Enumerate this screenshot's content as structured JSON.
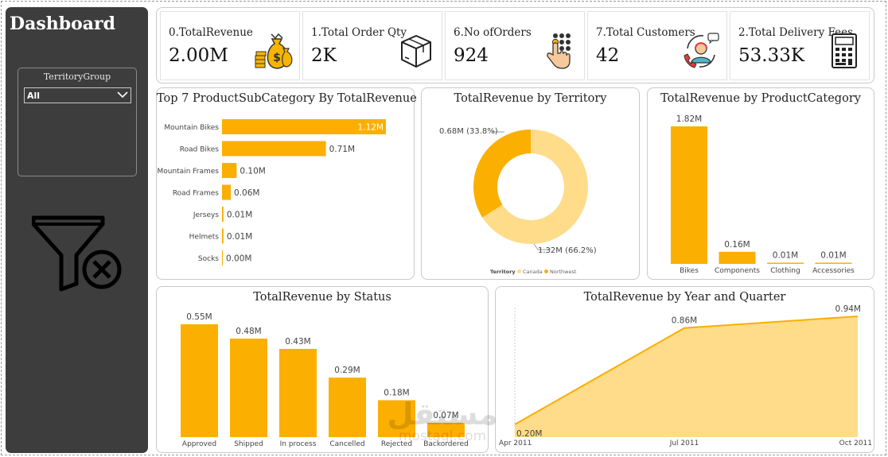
{
  "sidebar": {
    "title": "Dashboard",
    "slicer": {
      "title": "TerritoryGroup",
      "selected": "All"
    }
  },
  "kpis": [
    {
      "label": "0.TotalRevenue",
      "value": "2.00M",
      "icon": "money-bags-icon"
    },
    {
      "label": "1.Total Order Qty",
      "value": "2K",
      "icon": "package-box-icon"
    },
    {
      "label": "6.No ofOrders",
      "value": "924",
      "icon": "touch-keypad-icon"
    },
    {
      "label": "7.Total Customers",
      "value": "42",
      "icon": "customer-support-icon"
    },
    {
      "label": "2.Total Delivery Fees",
      "value": "53.33K",
      "icon": "calculator-icon"
    }
  ],
  "colors": {
    "primary": "#FBAF00",
    "secondary": "#FEDC8A",
    "sidebar": "#3D3D3D"
  },
  "watermark": "mostaql.com",
  "chart_data": [
    {
      "id": "subcategory",
      "type": "bar",
      "orientation": "horizontal",
      "title": "Top 7 ProductSubCategory By TotalRevenue",
      "categories": [
        "Mountain Bikes",
        "Road Bikes",
        "Mountain Frames",
        "Road Frames",
        "Jerseys",
        "Helmets",
        "Socks"
      ],
      "values": [
        1.12,
        0.71,
        0.1,
        0.06,
        0.01,
        0.01,
        0.0
      ],
      "labels": [
        "1.12M",
        "0.71M",
        "0.10M",
        "0.06M",
        "0.01M",
        "0.01M",
        "0.00M"
      ],
      "xlim": [
        0,
        1.12
      ]
    },
    {
      "id": "territory",
      "type": "pie",
      "donut": true,
      "title": "TotalRevenue by Territory",
      "legend_title": "Territory",
      "legend_position": "bottom",
      "slices": [
        {
          "name": "Canada",
          "value": 1.32,
          "label": "1.32M (66.2%)",
          "color": "#FEDC8A"
        },
        {
          "name": "Northwest",
          "value": 0.68,
          "label": "0.68M (33.8%)",
          "color": "#FBAF00"
        }
      ]
    },
    {
      "id": "category",
      "type": "bar",
      "title": "TotalRevenue by ProductCategory",
      "categories": [
        "Bikes",
        "Components",
        "Clothing",
        "Accessories"
      ],
      "values": [
        1.82,
        0.16,
        0.01,
        0.01
      ],
      "labels": [
        "1.82M",
        "0.16M",
        "0.01M",
        "0.01M"
      ],
      "ylim": [
        0,
        1.82
      ]
    },
    {
      "id": "status",
      "type": "bar",
      "title": "TotalRevenue by Status",
      "categories": [
        "Approved",
        "Shipped",
        "In process",
        "Cancelled",
        "Rejected",
        "Backordered"
      ],
      "values": [
        0.55,
        0.48,
        0.43,
        0.29,
        0.18,
        0.07
      ],
      "labels": [
        "0.55M",
        "0.48M",
        "0.43M",
        "0.29M",
        "0.18M",
        "0.07M"
      ],
      "ylim": [
        0,
        0.55
      ]
    },
    {
      "id": "quarter",
      "type": "area",
      "title": "TotalRevenue by Year and Quarter",
      "x": [
        "Apr 2011",
        "Jul 2011",
        "Oct 2011"
      ],
      "values": [
        0.2,
        0.86,
        0.94
      ],
      "labels": [
        "0.20M",
        "0.86M",
        "0.94M"
      ],
      "ylim": [
        0.2,
        0.94
      ]
    }
  ]
}
